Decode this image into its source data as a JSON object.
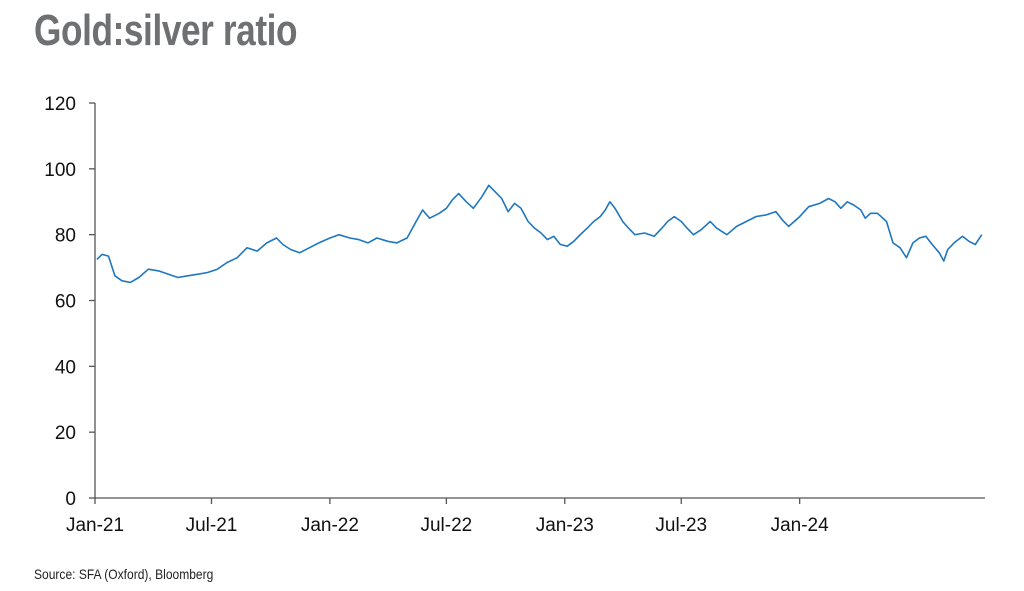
{
  "header": {
    "title": "Gold:silver ratio"
  },
  "footer": {
    "source": "Source: SFA (Oxford), Bloomberg"
  },
  "colors": {
    "series": "#1f77bf",
    "title": "#6f7072",
    "axis": "#555555"
  },
  "chart_data": {
    "type": "line",
    "title": "Gold:silver ratio",
    "xlabel": "",
    "ylabel": "",
    "ylim": [
      0,
      120
    ],
    "yticks": [
      0,
      20,
      40,
      60,
      80,
      100,
      120
    ],
    "xlim": [
      "2021-01-01",
      "2024-10-15"
    ],
    "xticks": [
      {
        "date": "2021-01-01",
        "label": "Jan-21"
      },
      {
        "date": "2021-07-01",
        "label": "Jul-21"
      },
      {
        "date": "2022-01-01",
        "label": "Jan-22"
      },
      {
        "date": "2022-07-01",
        "label": "Jul-22"
      },
      {
        "date": "2023-01-01",
        "label": "Jan-23"
      },
      {
        "date": "2023-07-01",
        "label": "Jul-23"
      },
      {
        "date": "2024-01-01",
        "label": "Jan-24"
      }
    ],
    "grid": false,
    "legend": "none",
    "series": [
      {
        "values": [
          [
            "2021-01-04",
            72.5
          ],
          [
            "2021-01-12",
            74
          ],
          [
            "2021-01-22",
            73.5
          ],
          [
            "2021-02-01",
            67.5
          ],
          [
            "2021-02-12",
            66
          ],
          [
            "2021-02-25",
            65.5
          ],
          [
            "2021-03-10",
            67
          ],
          [
            "2021-03-25",
            69.5
          ],
          [
            "2021-04-10",
            69
          ],
          [
            "2021-04-25",
            68
          ],
          [
            "2021-05-10",
            67
          ],
          [
            "2021-05-25",
            67.5
          ],
          [
            "2021-06-10",
            68
          ],
          [
            "2021-06-25",
            68.5
          ],
          [
            "2021-07-10",
            69.5
          ],
          [
            "2021-07-25",
            71.5
          ],
          [
            "2021-08-10",
            73
          ],
          [
            "2021-08-25",
            76
          ],
          [
            "2021-09-10",
            75
          ],
          [
            "2021-09-25",
            77.5
          ],
          [
            "2021-10-10",
            79
          ],
          [
            "2021-10-20",
            77
          ],
          [
            "2021-11-01",
            75.5
          ],
          [
            "2021-11-15",
            74.5
          ],
          [
            "2021-11-30",
            76
          ],
          [
            "2021-12-15",
            77.5
          ],
          [
            "2022-01-01",
            79
          ],
          [
            "2022-01-15",
            80
          ],
          [
            "2022-02-01",
            79
          ],
          [
            "2022-02-15",
            78.5
          ],
          [
            "2022-03-01",
            77.5
          ],
          [
            "2022-03-15",
            79
          ],
          [
            "2022-04-01",
            78
          ],
          [
            "2022-04-15",
            77.5
          ],
          [
            "2022-05-01",
            79
          ],
          [
            "2022-05-15",
            84
          ],
          [
            "2022-05-25",
            87.5
          ],
          [
            "2022-06-05",
            85
          ],
          [
            "2022-06-20",
            86.5
          ],
          [
            "2022-07-01",
            88
          ],
          [
            "2022-07-10",
            90.5
          ],
          [
            "2022-07-20",
            92.5
          ],
          [
            "2022-08-01",
            90
          ],
          [
            "2022-08-12",
            88
          ],
          [
            "2022-08-25",
            91.5
          ],
          [
            "2022-09-05",
            95
          ],
          [
            "2022-09-15",
            93
          ],
          [
            "2022-09-25",
            91
          ],
          [
            "2022-10-05",
            87
          ],
          [
            "2022-10-15",
            89.5
          ],
          [
            "2022-10-25",
            88
          ],
          [
            "2022-11-05",
            84
          ],
          [
            "2022-11-15",
            82
          ],
          [
            "2022-11-25",
            80.5
          ],
          [
            "2022-12-05",
            78.5
          ],
          [
            "2022-12-15",
            79.5
          ],
          [
            "2022-12-25",
            77
          ],
          [
            "2023-01-05",
            76.5
          ],
          [
            "2023-01-15",
            78
          ],
          [
            "2023-01-25",
            80
          ],
          [
            "2023-02-05",
            82
          ],
          [
            "2023-02-15",
            84
          ],
          [
            "2023-02-25",
            85.5
          ],
          [
            "2023-03-05",
            87.5
          ],
          [
            "2023-03-12",
            90
          ],
          [
            "2023-03-20",
            88
          ],
          [
            "2023-04-01",
            84
          ],
          [
            "2023-04-10",
            82
          ],
          [
            "2023-04-20",
            80
          ],
          [
            "2023-05-05",
            80.5
          ],
          [
            "2023-05-20",
            79.5
          ],
          [
            "2023-06-01",
            82
          ],
          [
            "2023-06-10",
            84
          ],
          [
            "2023-06-20",
            85.5
          ],
          [
            "2023-07-01",
            84
          ],
          [
            "2023-07-10",
            82
          ],
          [
            "2023-07-20",
            80
          ],
          [
            "2023-08-01",
            81.5
          ],
          [
            "2023-08-15",
            84
          ],
          [
            "2023-08-25",
            82
          ],
          [
            "2023-09-10",
            80
          ],
          [
            "2023-09-25",
            82.5
          ],
          [
            "2023-10-10",
            84
          ],
          [
            "2023-10-25",
            85.5
          ],
          [
            "2023-11-10",
            86
          ],
          [
            "2023-11-25",
            87
          ],
          [
            "2023-12-05",
            84.5
          ],
          [
            "2023-12-15",
            82.5
          ],
          [
            "2024-01-01",
            85.5
          ],
          [
            "2024-01-15",
            88.5
          ],
          [
            "2024-02-01",
            89.5
          ],
          [
            "2024-02-15",
            91
          ],
          [
            "2024-02-25",
            90
          ],
          [
            "2024-03-05",
            88
          ],
          [
            "2024-03-15",
            90
          ],
          [
            "2024-03-25",
            89
          ],
          [
            "2024-04-05",
            87.5
          ],
          [
            "2024-04-12",
            85
          ],
          [
            "2024-04-20",
            86.5
          ],
          [
            "2024-05-01",
            86.5
          ],
          [
            "2024-05-15",
            84
          ],
          [
            "2024-05-25",
            77.5
          ],
          [
            "2024-06-05",
            76
          ],
          [
            "2024-06-15",
            73
          ],
          [
            "2024-06-25",
            77.5
          ],
          [
            "2024-07-05",
            79
          ],
          [
            "2024-07-15",
            79.5
          ],
          [
            "2024-07-25",
            77
          ],
          [
            "2024-08-05",
            74.5
          ],
          [
            "2024-08-12",
            72
          ],
          [
            "2024-08-18",
            75.5
          ],
          [
            "2024-08-28",
            77.5
          ],
          [
            "2024-09-10",
            79.5
          ],
          [
            "2024-09-20",
            78
          ],
          [
            "2024-09-30",
            77
          ],
          [
            "2024-10-10",
            80
          ]
        ]
      }
    ]
  }
}
